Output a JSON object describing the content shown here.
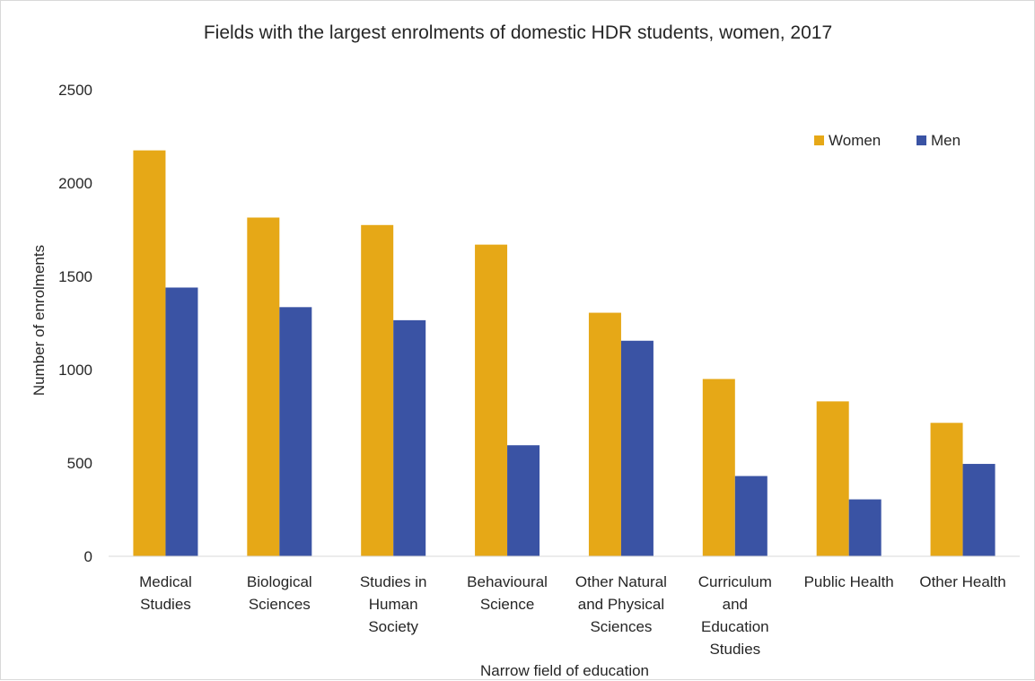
{
  "chart_data": {
    "type": "bar",
    "title": "Fields with the largest enrolments of domestic HDR students, women, 2017",
    "xlabel": "Narrow field of education",
    "ylabel": "Number of enrolments",
    "ylim": [
      0,
      2500
    ],
    "yticks": [
      "0",
      "500",
      "1000",
      "1500",
      "2000",
      "2500"
    ],
    "grid": false,
    "legend_position": "top-right",
    "categories": [
      [
        "Medical",
        "Studies"
      ],
      [
        "Biological",
        "Sciences"
      ],
      [
        "Studies in",
        "Human",
        "Society"
      ],
      [
        "Behavioural",
        "Science"
      ],
      [
        "Other Natural",
        "and Physical",
        "Sciences"
      ],
      [
        "Curriculum",
        "and",
        "Education",
        "Studies"
      ],
      [
        "Public Health"
      ],
      [
        "Other Health"
      ]
    ],
    "series": [
      {
        "name": "Women",
        "color": "#E6A817",
        "values": [
          2175,
          1815,
          1775,
          1670,
          1305,
          950,
          830,
          715
        ]
      },
      {
        "name": "Men",
        "color": "#3A53A4",
        "values": [
          1440,
          1335,
          1265,
          595,
          1155,
          430,
          305,
          495
        ]
      }
    ]
  }
}
